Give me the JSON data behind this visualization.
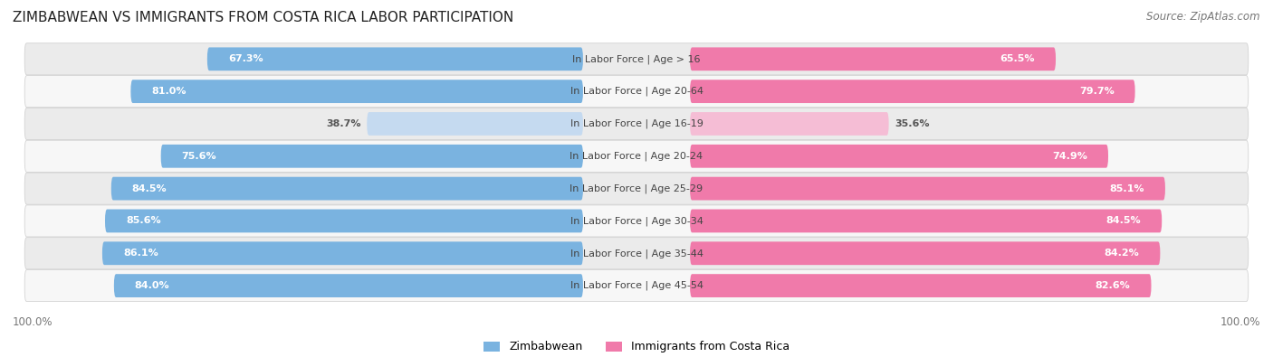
{
  "title": "ZIMBABWEAN VS IMMIGRANTS FROM COSTA RICA LABOR PARTICIPATION",
  "source": "Source: ZipAtlas.com",
  "categories": [
    "In Labor Force | Age > 16",
    "In Labor Force | Age 20-64",
    "In Labor Force | Age 16-19",
    "In Labor Force | Age 20-24",
    "In Labor Force | Age 25-29",
    "In Labor Force | Age 30-34",
    "In Labor Force | Age 35-44",
    "In Labor Force | Age 45-54"
  ],
  "zimbabwean": [
    67.3,
    81.0,
    38.7,
    75.6,
    84.5,
    85.6,
    86.1,
    84.0
  ],
  "costa_rica": [
    65.5,
    79.7,
    35.6,
    74.9,
    85.1,
    84.5,
    84.2,
    82.6
  ],
  "zim_color": "#7ab3e0",
  "zim_light_color": "#c5daf0",
  "cr_color": "#f07aaa",
  "cr_light_color": "#f5bdd5",
  "row_bg_even": "#ebebeb",
  "row_bg_odd": "#f7f7f7",
  "background_color": "#ffffff",
  "label_fontsize": 8.0,
  "title_fontsize": 11,
  "legend_fontsize": 9,
  "source_fontsize": 8.5
}
